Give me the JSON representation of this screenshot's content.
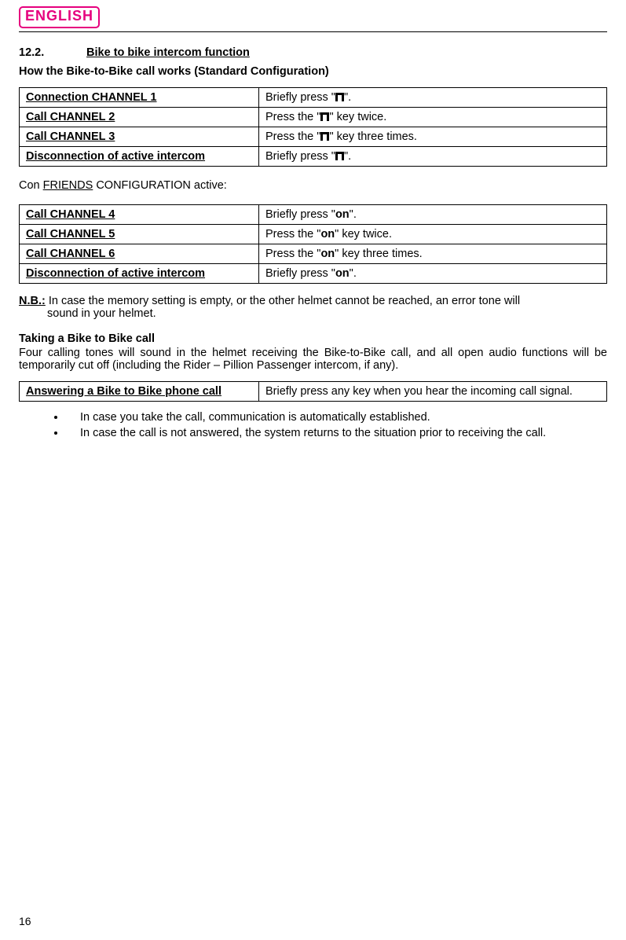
{
  "header": {
    "language_badge": "ENGLISH"
  },
  "section": {
    "number": "12.2.",
    "title": "Bike to bike intercom function",
    "subtitle": "How the Bike-to-Bike call works (Standard Configuration)"
  },
  "table1": {
    "rows": [
      {
        "label": "Connection CHANNEL 1",
        "pre": "Briefly press \"",
        "icon": "n",
        "post": "\"."
      },
      {
        "label": "Call CHANNEL 2",
        "pre": "Press the \"",
        "icon": "n",
        "post": "\" key twice."
      },
      {
        "label": "Call CHANNEL 3",
        "pre": "Press the \"",
        "icon": "n",
        "post": "\" key three times."
      },
      {
        "label": "Disconnection of active intercom",
        "pre": "Briefly press \"",
        "icon": "n",
        "post": "\"."
      }
    ]
  },
  "friends_line": {
    "pre": "Con ",
    "word": "FRIENDS",
    "post": " CONFIGURATION active:"
  },
  "table2": {
    "rows": [
      {
        "label": "Call CHANNEL 4",
        "pre": "Briefly press \"",
        "on": "on",
        "post": "\"."
      },
      {
        "label": "Call CHANNEL 5",
        "pre": "Press the \"",
        "on": "on",
        "post": "\" key twice."
      },
      {
        "label": "Call CHANNEL 6",
        "pre": "Press the \"",
        "on": "on",
        "post": "\" key three times."
      },
      {
        "label": "Disconnection of active intercom",
        "pre": "Briefly press \"",
        "on": "on",
        "post": "\"."
      }
    ]
  },
  "nb": {
    "label": "N.B.:",
    "line1": " In case the memory setting is empty, or the other helmet cannot be reached, an error tone will",
    "line2": "sound in your helmet."
  },
  "taking": {
    "heading": "Taking a Bike to Bike call",
    "text": "Four calling tones will sound in the helmet receiving the Bike-to-Bike call, and all open audio functions will be temporarily cut off (including the Rider – Pillion Passenger intercom, if any)."
  },
  "table3": {
    "label": "Answering a Bike to Bike phone call",
    "value": "Briefly press any key when you hear the incoming call signal."
  },
  "bullets": [
    "In case you take the call, communication is automatically established.",
    "In case the call is not answered, the system returns to the situation prior to receiving the call."
  ],
  "page_number": "16"
}
